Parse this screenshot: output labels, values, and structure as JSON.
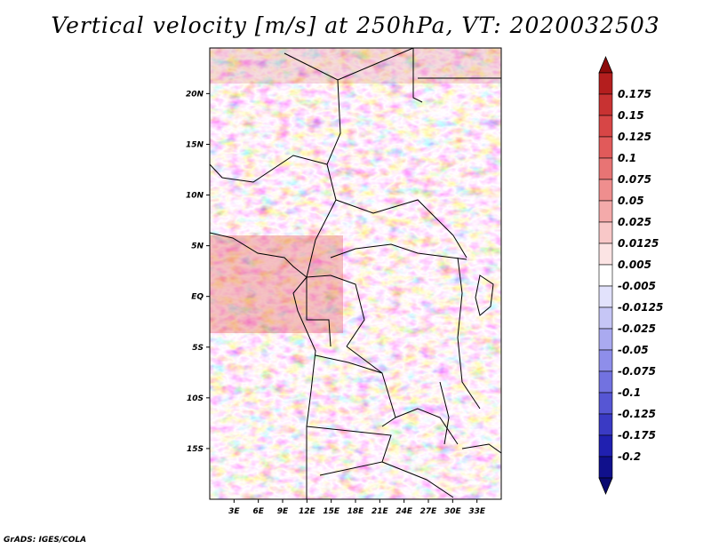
{
  "title": "Vertical velocity [m/s] at 250hPa, VT: 2020032503",
  "credit": "GrADS: IGES/COLA",
  "map": {
    "lon_range": [
      0,
      36
    ],
    "lat_range": [
      -20,
      24.5
    ],
    "x_ticks": [
      {
        "lon": 3,
        "label": "3E"
      },
      {
        "lon": 6,
        "label": "6E"
      },
      {
        "lon": 9,
        "label": "9E"
      },
      {
        "lon": 12,
        "label": "12E"
      },
      {
        "lon": 15,
        "label": "15E"
      },
      {
        "lon": 18,
        "label": "18E"
      },
      {
        "lon": 21,
        "label": "21E"
      },
      {
        "lon": 24,
        "label": "24E"
      },
      {
        "lon": 27,
        "label": "27E"
      },
      {
        "lon": 30,
        "label": "30E"
      },
      {
        "lon": 33,
        "label": "33E"
      }
    ],
    "y_ticks": [
      {
        "lat": 20,
        "label": "20N"
      },
      {
        "lat": 15,
        "label": "15N"
      },
      {
        "lat": 10,
        "label": "10N"
      },
      {
        "lat": 5,
        "label": "5N"
      },
      {
        "lat": 0,
        "label": "EQ"
      },
      {
        "lat": -5,
        "label": "5S"
      },
      {
        "lat": -10,
        "label": "10S"
      },
      {
        "lat": -15,
        "label": "15S"
      }
    ]
  },
  "colorbar": {
    "labels": [
      "0.175",
      "0.15",
      "0.125",
      "0.1",
      "0.075",
      "0.05",
      "0.025",
      "0.0125",
      "0.005",
      "-0.005",
      "-0.0125",
      "-0.025",
      "-0.05",
      "-0.075",
      "-0.1",
      "-0.125",
      "-0.175",
      "-0.2"
    ],
    "colors": [
      "#b41e1e",
      "#c83232",
      "#d74646",
      "#e15a5a",
      "#e87474",
      "#ef8e8e",
      "#f4aaaa",
      "#f8c8c8",
      "#fce4e4",
      "#ffffff",
      "#e2e2fc",
      "#c6c6f6",
      "#aaaaf0",
      "#8e8eea",
      "#7272e0",
      "#5656d4",
      "#3a3ac4",
      "#2020b0",
      "#10108c"
    ],
    "top_color": "#8c0a0a",
    "bottom_color": "#0a0a70"
  }
}
